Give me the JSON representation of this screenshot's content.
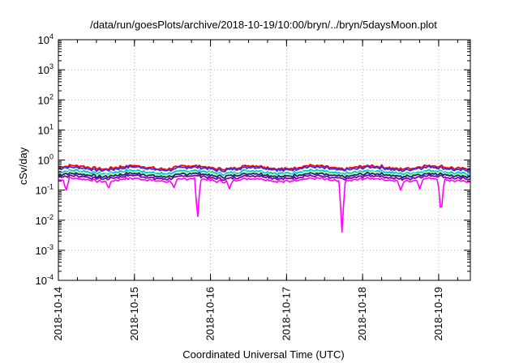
{
  "chart_data": {
    "type": "line",
    "title": "/data/run/goesPlots/archive/2018-10-19/10:00/bryn/../bryn/5daysMoon.plot",
    "xlabel": "Coordinated Universal Time (UTC)",
    "ylabel": "cSv/day",
    "yscale": "log",
    "ylim": [
      0.0001,
      10000
    ],
    "xlim": [
      "2018-10-14T00:00",
      "2018-10-19T10:00"
    ],
    "grid": true,
    "x_ticks": [
      "2018-10-14",
      "2018-10-15",
      "2018-10-16",
      "2018-10-17",
      "2018-10-18",
      "2018-10-19"
    ],
    "y_ticks": [
      {
        "base": "10",
        "exp": "-4",
        "value": 0.0001
      },
      {
        "base": "10",
        "exp": "-3",
        "value": 0.001
      },
      {
        "base": "10",
        "exp": "-2",
        "value": 0.01
      },
      {
        "base": "10",
        "exp": "-1",
        "value": 0.1
      },
      {
        "base": "10",
        "exp": "0",
        "value": 1
      },
      {
        "base": "10",
        "exp": "1",
        "value": 10
      },
      {
        "base": "10",
        "exp": "2",
        "value": 100
      },
      {
        "base": "10",
        "exp": "3",
        "value": 1000
      },
      {
        "base": "10",
        "exp": "4",
        "value": 10000
      }
    ],
    "series": [
      {
        "color": "#ff0000",
        "baseline": 0.58,
        "dips": []
      },
      {
        "color": "#3030ff",
        "baseline": 0.52,
        "dips": []
      },
      {
        "color": "#00c0c0",
        "baseline": 0.4,
        "dips": []
      },
      {
        "color": "#a0ffa0",
        "baseline": 0.36,
        "dips": []
      },
      {
        "color": "#202080",
        "baseline": 0.32,
        "dips": []
      },
      {
        "color": "#8000a0",
        "baseline": 0.27,
        "dips": []
      },
      {
        "color": "#ff00ff",
        "baseline": 0.22,
        "dips": [
          {
            "x": "2018-10-14T02:24",
            "value": 0.09
          },
          {
            "x": "2018-10-14T15:50",
            "value": 0.11
          },
          {
            "x": "2018-10-15T12:30",
            "value": 0.12
          },
          {
            "x": "2018-10-15T19:55",
            "value": 0.01
          },
          {
            "x": "2018-10-16T06:00",
            "value": 0.11
          },
          {
            "x": "2018-10-17T17:30",
            "value": 0.004
          },
          {
            "x": "2018-10-18T12:00",
            "value": 0.1
          },
          {
            "x": "2018-10-18T18:00",
            "value": 0.11
          },
          {
            "x": "2018-10-19T00:45",
            "value": 0.012
          }
        ]
      }
    ]
  }
}
